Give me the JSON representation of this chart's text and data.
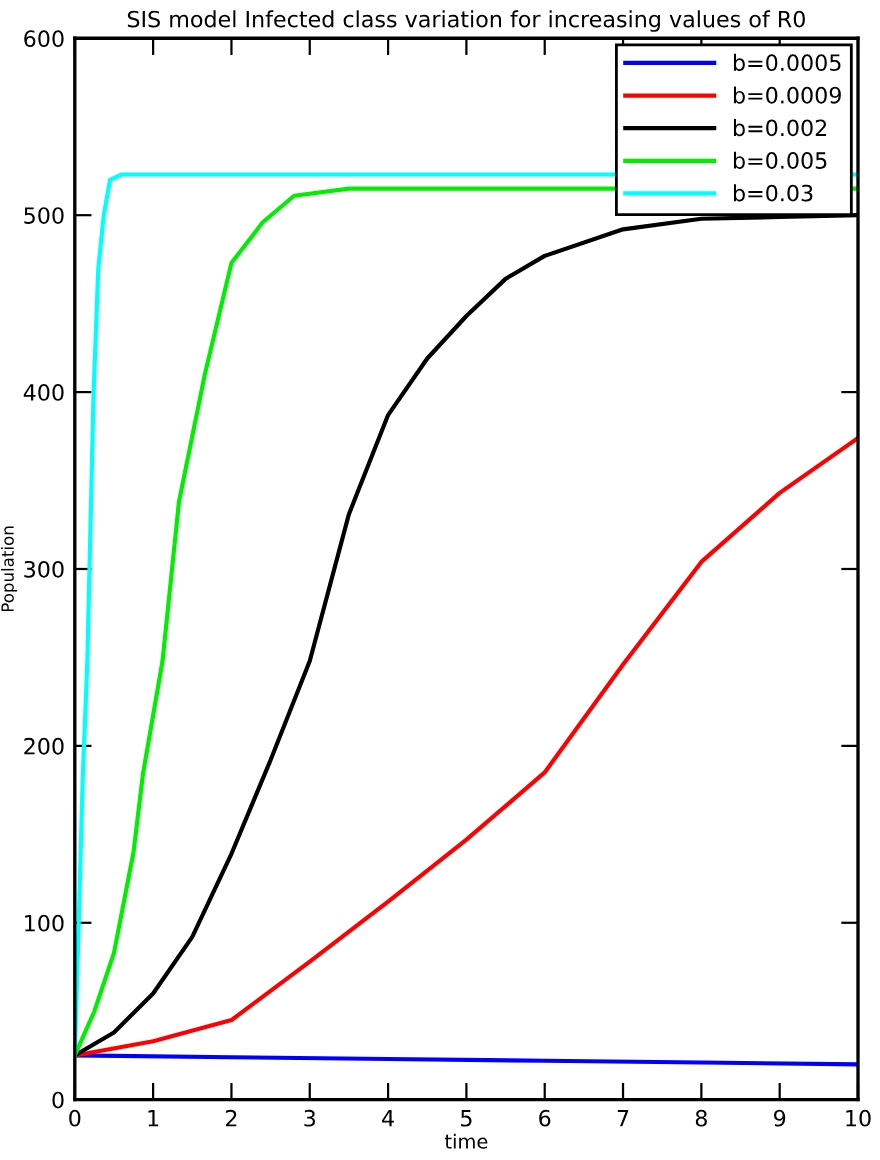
{
  "chart_data": {
    "type": "line",
    "title": "SIS model Infected class variation for increasing values of R0",
    "xlabel": "time",
    "ylabel": "Population",
    "xlim": [
      0,
      10
    ],
    "ylim": [
      0,
      600
    ],
    "xticks": [
      0,
      1,
      2,
      3,
      4,
      5,
      6,
      7,
      8,
      9,
      10
    ],
    "yticks": [
      0,
      100,
      200,
      300,
      400,
      500,
      600
    ],
    "grid": false,
    "legend": "top right",
    "marker": "none",
    "line_style": "solid",
    "series": [
      {
        "name": "b=0.0005",
        "color": "#0000ff",
        "x": [
          0,
          2,
          4,
          6,
          8,
          10
        ],
        "values": [
          25,
          24,
          23,
          22,
          21,
          20
        ]
      },
      {
        "name": "b=0.0009",
        "color": "#ff0000",
        "x": [
          0,
          1,
          2,
          3,
          4,
          5,
          6,
          7,
          8,
          9,
          10
        ],
        "values": [
          25,
          33,
          45,
          78,
          112,
          147,
          185,
          246,
          304,
          343,
          374
        ]
      },
      {
        "name": "b=0.002",
        "color": "#000000",
        "x": [
          0,
          0.5,
          1,
          1.5,
          2,
          2.5,
          3,
          3.5,
          4,
          4.5,
          5,
          5.5,
          6,
          7,
          8,
          9,
          10
        ],
        "values": [
          25,
          38,
          60,
          92,
          139,
          192,
          248,
          331,
          387,
          419,
          443,
          464,
          477,
          492,
          498,
          499,
          500
        ]
      },
      {
        "name": "b=0.005",
        "color": "#00ee00",
        "x": [
          0,
          0.25,
          0.5,
          0.75,
          0.87,
          1.12,
          1.33,
          1.66,
          2.0,
          2.4,
          2.8,
          3.5,
          10
        ],
        "values": [
          25,
          50,
          83,
          140,
          184,
          248,
          338,
          410,
          473,
          496,
          511,
          515,
          515
        ]
      },
      {
        "name": "b=0.03",
        "color": "#00ffff",
        "x": [
          0,
          0.05,
          0.1,
          0.16,
          0.24,
          0.3,
          0.37,
          0.45,
          0.6,
          10
        ],
        "values": [
          25,
          100,
          180,
          248,
          400,
          470,
          500,
          520,
          523,
          523
        ]
      }
    ]
  }
}
